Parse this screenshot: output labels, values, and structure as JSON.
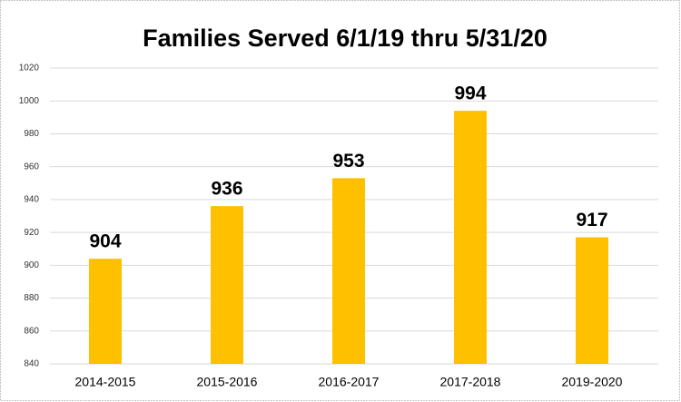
{
  "chart_data": {
    "type": "bar",
    "title": "Families Served 6/1/19 thru 5/31/20",
    "categories": [
      "2014-2015",
      "2015-2016",
      "2016-2017",
      "2017-2018",
      "2019-2020"
    ],
    "values": [
      904,
      936,
      953,
      994,
      917
    ],
    "color": "#ffc000",
    "ylim": [
      840,
      1020
    ],
    "yticks": [
      840,
      860,
      880,
      900,
      920,
      940,
      960,
      980,
      1000,
      1020
    ],
    "grid": true
  }
}
